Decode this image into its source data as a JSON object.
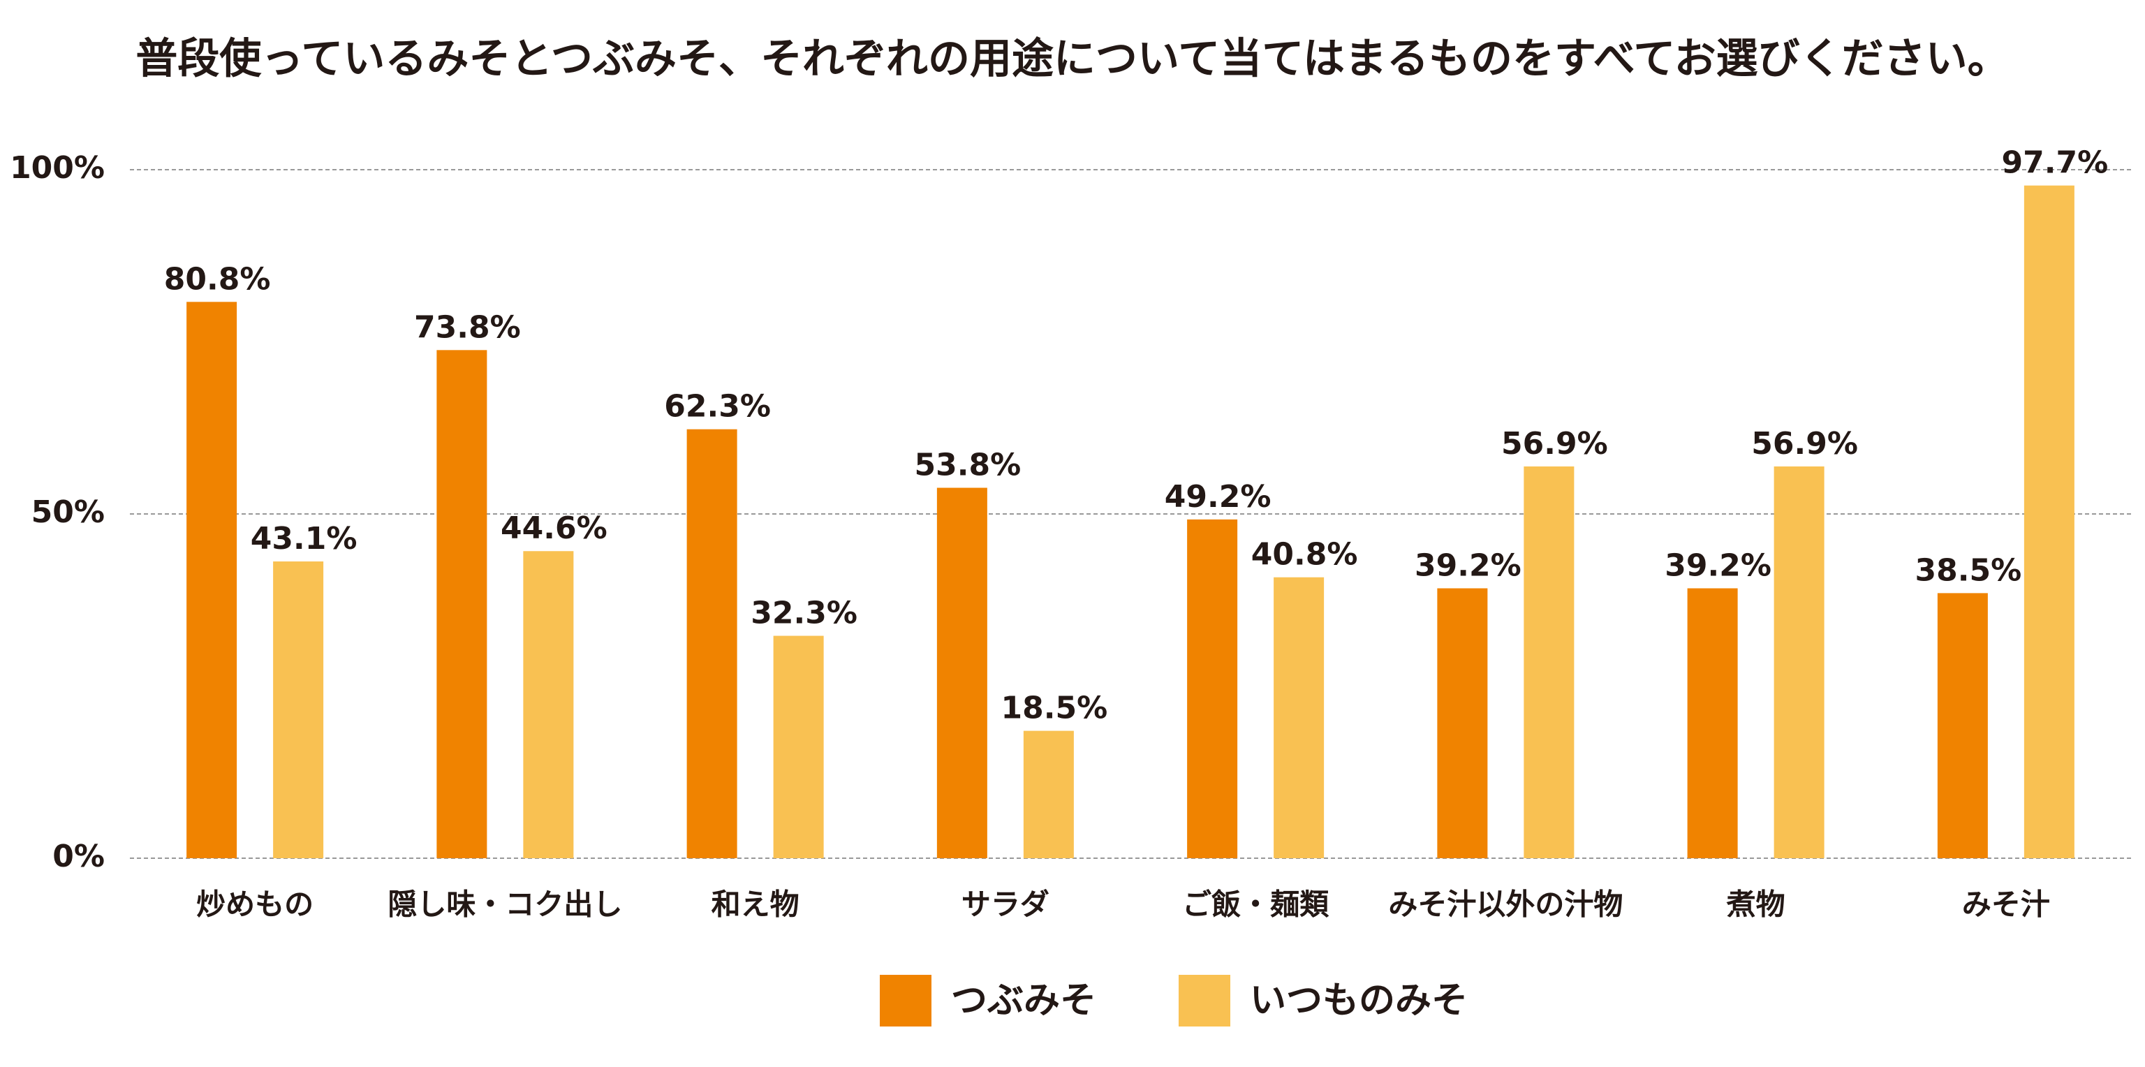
{
  "chart_data": {
    "type": "bar",
    "title": "普段使っているみそとつぶみそ、それぞれの用途について当てはまるものをすべてお選びください。",
    "categories": [
      "炒めもの",
      "隠し味・コク出し",
      "和え物",
      "サラダ",
      "ご飯・麺類",
      "みそ汁以外の汁物",
      "煮物",
      "みそ汁"
    ],
    "series": [
      {
        "name": "つぶみそ",
        "color": "#f08300",
        "values": [
          80.8,
          73.8,
          62.3,
          53.8,
          49.2,
          39.2,
          39.2,
          38.5
        ],
        "value_labels": [
          "80.8%",
          "73.8%",
          "62.3%",
          "53.8%",
          "49.2%",
          "39.2%",
          "39.2%",
          "38.5%"
        ]
      },
      {
        "name": "いつものみそ",
        "color": "#f9c152",
        "values": [
          43.1,
          44.6,
          32.3,
          18.5,
          40.8,
          56.9,
          56.9,
          97.7
        ],
        "value_labels": [
          "43.1%",
          "44.6%",
          "32.3%",
          "18.5%",
          "40.8%",
          "56.9%",
          "56.9%",
          "97.7%"
        ]
      }
    ],
    "ylim": [
      0,
      100
    ],
    "yticks": [
      {
        "value": 0,
        "label": "0%"
      },
      {
        "value": 50,
        "label": "50%"
      },
      {
        "value": 100,
        "label": "100%"
      }
    ],
    "grid": true,
    "legend": "bottom"
  }
}
